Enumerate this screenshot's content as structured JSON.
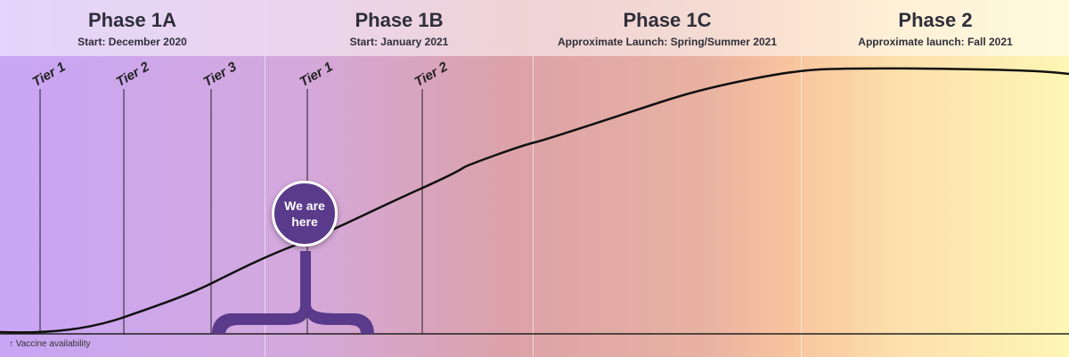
{
  "phases": [
    {
      "title": "Phase 1A",
      "subtitle": "Start: December 2020"
    },
    {
      "title": "Phase 1B",
      "subtitle": "Start: January 2021"
    },
    {
      "title": "Phase 1C",
      "subtitle": "Approximate Launch: Spring/Summer 2021"
    },
    {
      "title": "Phase 2",
      "subtitle": "Approximate launch: Fall 2021"
    }
  ],
  "tiers": [
    "Tier 1",
    "Tier 2",
    "Tier 3",
    "Tier 1",
    "Tier 2"
  ],
  "marker": {
    "label": "We are here"
  },
  "axis": {
    "label": "↑ Vaccine availability"
  },
  "colors": {
    "marker": "#5a3a8a",
    "curve": "#111111"
  }
}
